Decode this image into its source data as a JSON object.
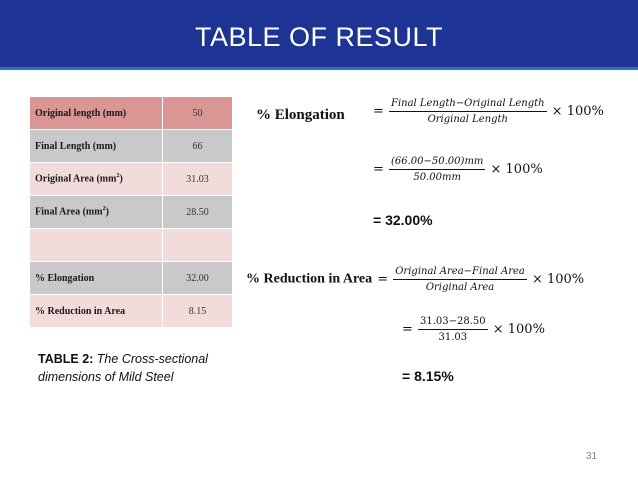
{
  "title": "TABLE OF RESULT",
  "table": {
    "rows": [
      {
        "label": "Original length (mm)",
        "value": "50"
      },
      {
        "label": "Final Length (mm)",
        "value": "66"
      },
      {
        "label": "Original Area (mm",
        "label_sup": "2",
        "label_end": ")",
        "value": "31.03"
      },
      {
        "label": "Final Area (mm",
        "label_sup": "2",
        "label_end": ")",
        "value": "28.50"
      },
      {
        "label": "",
        "value": ""
      },
      {
        "label": "% Elongation",
        "value": "32.00"
      },
      {
        "label": "% Reduction in Area",
        "value": "8.15"
      }
    ]
  },
  "caption": {
    "bold": "TABLE 2:",
    "italic": " The Cross-sectional dimensions of Mild Steel"
  },
  "elongation": {
    "heading": "% Elongation",
    "eq": "=",
    "formula_num": "Final Length−Original Length",
    "formula_den": "Original Length",
    "times": "× 100%",
    "sub_num": "(66.00−50.00)mm",
    "sub_den": "50.00mm",
    "result": "= 32.00%"
  },
  "reduction": {
    "heading": "% Reduction in Area",
    "eq": "=",
    "formula_num": "Original Area−Final Area",
    "formula_den": "Original Area",
    "times": "× 100%",
    "sub_num": "31.03−28.50",
    "sub_den": "31.03",
    "result": "= 8.15%"
  },
  "page_number": "31",
  "colors": {
    "title_bar": "#1d3494",
    "title_rule": "#2f6fc9",
    "header_row": "#d99694",
    "pink_row": "#f2dcdb",
    "gray_row": "#c9c9c9"
  }
}
